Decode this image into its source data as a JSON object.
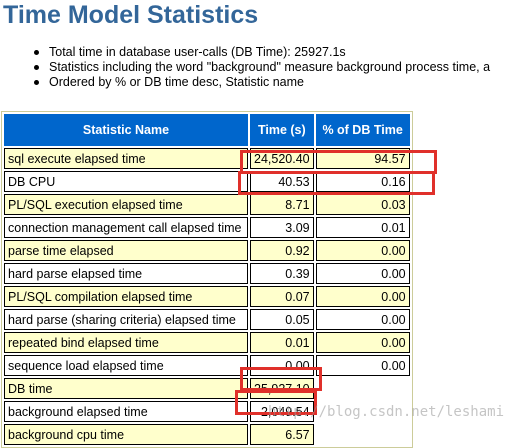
{
  "title": "Time Model Statistics",
  "notes": [
    "Total time in database user-calls (DB Time): 25927.1s",
    "Statistics including the word \"background\" measure background process time, a",
    "Ordered by % or DB time desc, Statistic name"
  ],
  "table": {
    "headers": [
      "Statistic Name",
      "Time (s)",
      "% of DB Time"
    ],
    "rows": [
      {
        "name": "sql execute elapsed time",
        "time": "24,520.40",
        "pct": "94.57"
      },
      {
        "name": "DB CPU",
        "time": "40.53",
        "pct": "0.16"
      },
      {
        "name": "PL/SQL execution elapsed time",
        "time": "8.71",
        "pct": "0.03"
      },
      {
        "name": "connection management call elapsed time",
        "time": "3.09",
        "pct": "0.01"
      },
      {
        "name": "parse time elapsed",
        "time": "0.92",
        "pct": "0.00"
      },
      {
        "name": "hard parse elapsed time",
        "time": "0.39",
        "pct": "0.00"
      },
      {
        "name": "PL/SQL compilation elapsed time",
        "time": "0.07",
        "pct": "0.00"
      },
      {
        "name": "hard parse (sharing criteria) elapsed time",
        "time": "0.05",
        "pct": "0.00"
      },
      {
        "name": "repeated bind elapsed time",
        "time": "0.01",
        "pct": "0.00"
      },
      {
        "name": "sequence load elapsed time",
        "time": "0.00",
        "pct": "0.00"
      },
      {
        "name": "DB time",
        "time": "25,927.10",
        "pct": ""
      },
      {
        "name": "background elapsed time",
        "time": "2,049.54",
        "pct": ""
      },
      {
        "name": "background cpu time",
        "time": "6.57",
        "pct": ""
      }
    ]
  },
  "watermark": "http://blog.csdn.net/leshami",
  "colors": {
    "title": "#336699",
    "header_bg": "#0066cc",
    "row_odd": "#ffffcc",
    "highlight_box": "#e0302a"
  }
}
